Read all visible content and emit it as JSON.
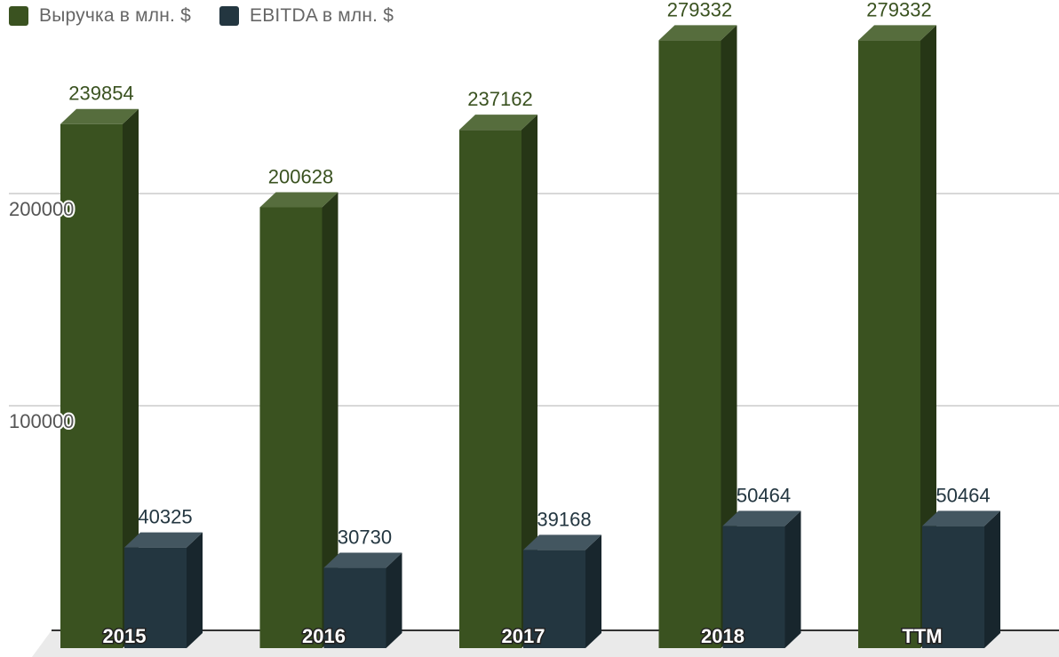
{
  "chart_data": {
    "type": "bar",
    "style": "3d-clustered-column",
    "categories": [
      "2015",
      "2016",
      "2017",
      "2018",
      "TTM"
    ],
    "series": [
      {
        "name": "Выручка в млн. $",
        "values": [
          239854,
          200628,
          237162,
          279332,
          279332
        ],
        "color": "#3a5220",
        "side_color": "#263616",
        "top_color": "#566d3d",
        "label_color": "#3a5220"
      },
      {
        "name": "EBITDA в млн. $",
        "values": [
          40325,
          30730,
          39168,
          50464,
          50464
        ],
        "color": "#233640",
        "side_color": "#18262d",
        "top_color": "#435660",
        "label_color": "#233640"
      }
    ],
    "yticks": [
      "100000",
      "200000"
    ],
    "ylim": [
      0,
      290000
    ],
    "legend_position": "top-left",
    "grid": true
  }
}
